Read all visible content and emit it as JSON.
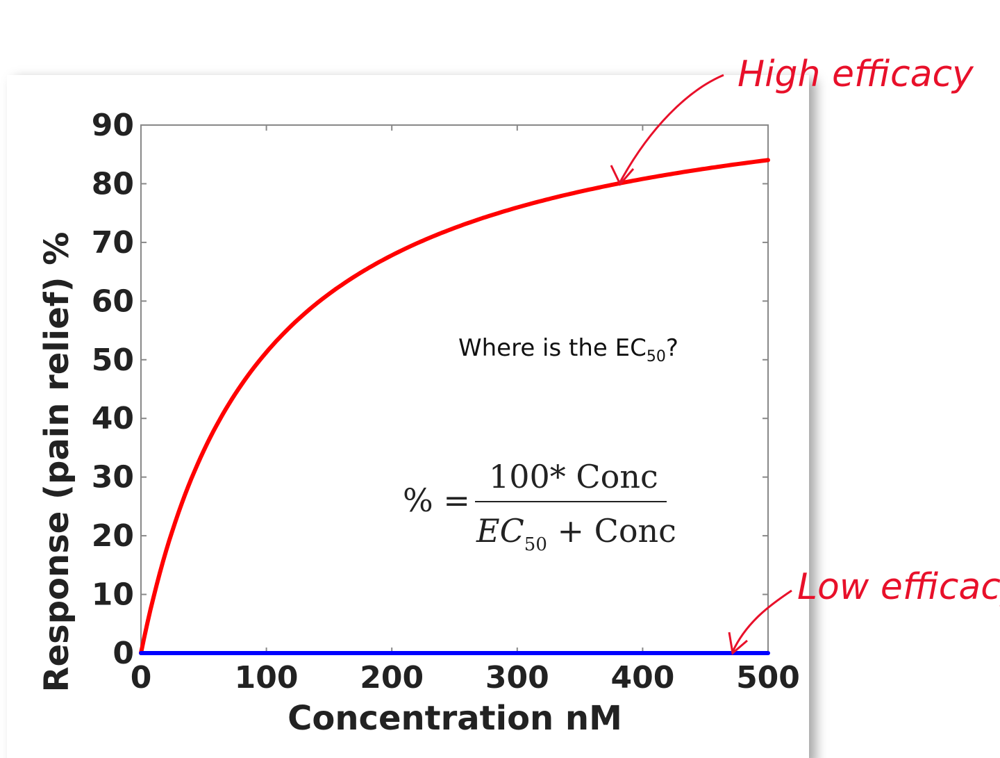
{
  "chart_data": {
    "type": "line",
    "title": "",
    "xlabel": "Concentration nM",
    "ylabel": "Response (pain relief) %",
    "xlim": [
      0,
      500
    ],
    "ylim": [
      0,
      90
    ],
    "x_ticks": [
      0,
      100,
      200,
      300,
      400,
      500
    ],
    "y_ticks": [
      0,
      10,
      20,
      30,
      40,
      50,
      60,
      70,
      80,
      90
    ],
    "series": [
      {
        "name": "High efficacy",
        "color": "#ff0000",
        "model": "hyperbolic",
        "emax": 100,
        "ec50": 95,
        "x": [
          0,
          25,
          50,
          100,
          150,
          200,
          250,
          300,
          350,
          400,
          450,
          500
        ],
        "values": [
          0,
          20.8,
          34.5,
          51.3,
          61.2,
          67.8,
          72.5,
          75.9,
          78.6,
          80.8,
          82.6,
          84.0
        ]
      },
      {
        "name": "Low efficacy",
        "color": "#0000ff",
        "x": [
          0,
          500
        ],
        "values": [
          0,
          0
        ]
      }
    ],
    "annotations": {
      "question_prefix": "Where is the EC",
      "question_sub": "50",
      "question_suffix": "?",
      "formula": {
        "lhs": "% =",
        "numerator": "100* Conc",
        "den_part1": "EC",
        "den_sub": "50",
        "den_part2": " + Conc"
      },
      "high_label": "High efficacy",
      "low_label": "Low efficacy",
      "annotation_color": "#e8102a"
    }
  }
}
